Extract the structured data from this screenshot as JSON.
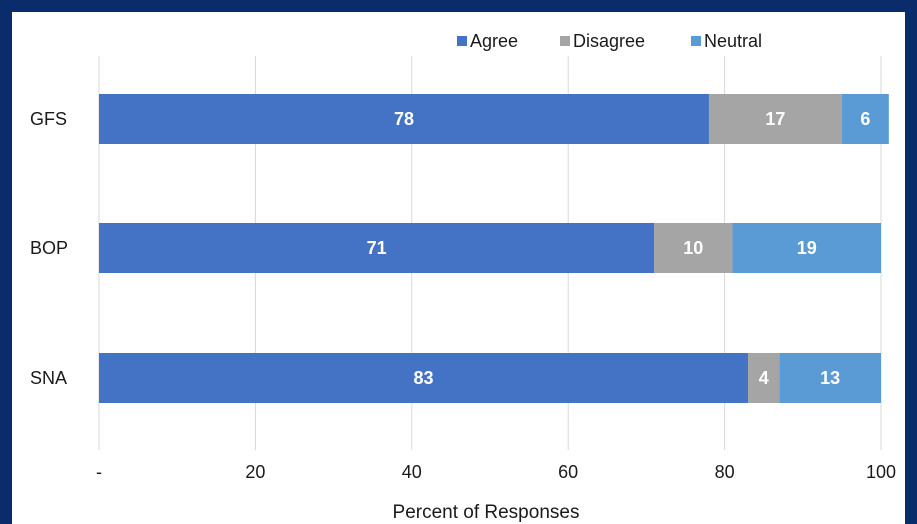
{
  "chart_data": {
    "type": "bar",
    "orientation": "horizontal",
    "stacked": true,
    "categories": [
      "GFS",
      "BOP",
      "SNA"
    ],
    "series": [
      {
        "name": "Agree",
        "values": [
          78,
          71,
          83
        ],
        "color": "#4472c4"
      },
      {
        "name": "Disagree",
        "values": [
          17,
          10,
          4
        ],
        "color": "#a5a5a5"
      },
      {
        "name": "Neutral",
        "values": [
          6,
          19,
          13
        ],
        "color": "#5b9bd5"
      }
    ],
    "xlabel": "Percent of Responses",
    "xlim": [
      0,
      100
    ],
    "x_ticks": [
      0,
      20,
      40,
      60,
      80,
      100
    ],
    "x_tick_labels": [
      "-",
      "20",
      "40",
      "60",
      "80",
      "100"
    ],
    "grid": true,
    "legend_position": "top-right",
    "data_labels": true
  },
  "colors": {
    "background": "#0b2c6b",
    "panel": "#ffffff",
    "grid": "#d9d9d9"
  }
}
